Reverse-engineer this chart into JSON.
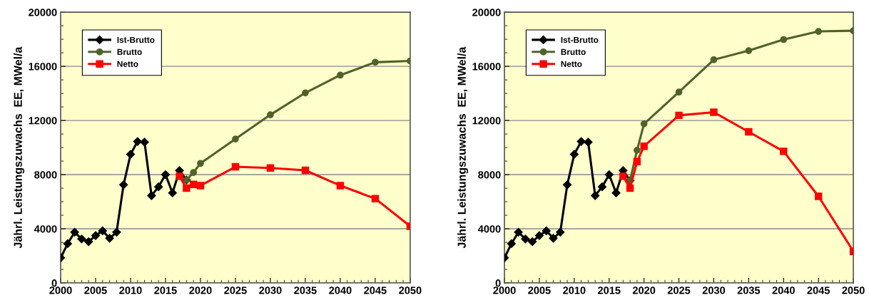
{
  "chart_data": [
    {
      "type": "line",
      "ylabel": "Jährl. Leistungszuwachs  EE, MWel/a",
      "xlim": [
        2000,
        2050
      ],
      "xticks": [
        2000,
        2005,
        2010,
        2015,
        2020,
        2025,
        2030,
        2035,
        2040,
        2045,
        2050
      ],
      "ylim": [
        0,
        20000
      ],
      "yticks": [
        0,
        4000,
        8000,
        12000,
        16000,
        20000
      ],
      "grid": "y",
      "legend": "top left",
      "series": [
        {
          "name": "Ist-Brutto",
          "color": "#000000",
          "marker": "diamond",
          "x": [
            2000,
            2001,
            2002,
            2003,
            2004,
            2005,
            2006,
            2007,
            2008,
            2009,
            2010,
            2011,
            2012,
            2013,
            2014,
            2015,
            2016,
            2017,
            2018
          ],
          "values": [
            1850,
            2900,
            3750,
            3250,
            3050,
            3500,
            3850,
            3300,
            3750,
            7250,
            9500,
            10450,
            10400,
            6450,
            7100,
            8000,
            6650,
            8300,
            7600
          ]
        },
        {
          "name": "Brutto",
          "color": "#4f6228",
          "marker": "circle",
          "x": [
            2018,
            2019,
            2020,
            2025,
            2030,
            2035,
            2040,
            2045,
            2050
          ],
          "values": [
            7600,
            8160,
            8830,
            10630,
            12420,
            14040,
            15350,
            16300,
            16400
          ]
        },
        {
          "name": "Netto",
          "color": "#ff0000",
          "marker": "square",
          "x": [
            2017,
            2018,
            2019,
            2020,
            2025,
            2030,
            2035,
            2040,
            2045,
            2050
          ],
          "values": [
            7880,
            7000,
            7280,
            7190,
            8580,
            8490,
            8320,
            7190,
            6230,
            4190
          ]
        }
      ]
    },
    {
      "type": "line",
      "ylabel": "Jährl. Leistungszuwachs  EE, MWel/a",
      "xlim": [
        2000,
        2050
      ],
      "xticks": [
        2000,
        2005,
        2010,
        2015,
        2020,
        2025,
        2030,
        2035,
        2040,
        2045,
        2050
      ],
      "ylim": [
        0,
        20000
      ],
      "yticks": [
        0,
        4000,
        8000,
        12000,
        16000,
        20000
      ],
      "grid": "y",
      "legend": "top left",
      "series": [
        {
          "name": "Ist-Brutto",
          "color": "#000000",
          "marker": "diamond",
          "x": [
            2000,
            2001,
            2002,
            2003,
            2004,
            2005,
            2006,
            2007,
            2008,
            2009,
            2010,
            2011,
            2012,
            2013,
            2014,
            2015,
            2016,
            2017,
            2018
          ],
          "values": [
            1850,
            2900,
            3750,
            3250,
            3050,
            3500,
            3850,
            3300,
            3750,
            7250,
            9500,
            10450,
            10400,
            6450,
            7100,
            8000,
            6650,
            8300,
            7560
          ]
        },
        {
          "name": "Brutto",
          "color": "#4f6228",
          "marker": "circle",
          "x": [
            2018,
            2019,
            2020,
            2025,
            2030,
            2035,
            2040,
            2045,
            2050
          ],
          "values": [
            7560,
            9800,
            11750,
            14100,
            16490,
            17160,
            17980,
            18580,
            18630
          ]
        },
        {
          "name": "Netto",
          "color": "#ff0000",
          "marker": "square",
          "x": [
            2017,
            2018,
            2019,
            2020,
            2025,
            2030,
            2035,
            2040,
            2045,
            2050
          ],
          "values": [
            7880,
            7000,
            8960,
            10100,
            12380,
            12610,
            11160,
            9720,
            6400,
            2330
          ]
        }
      ]
    }
  ]
}
